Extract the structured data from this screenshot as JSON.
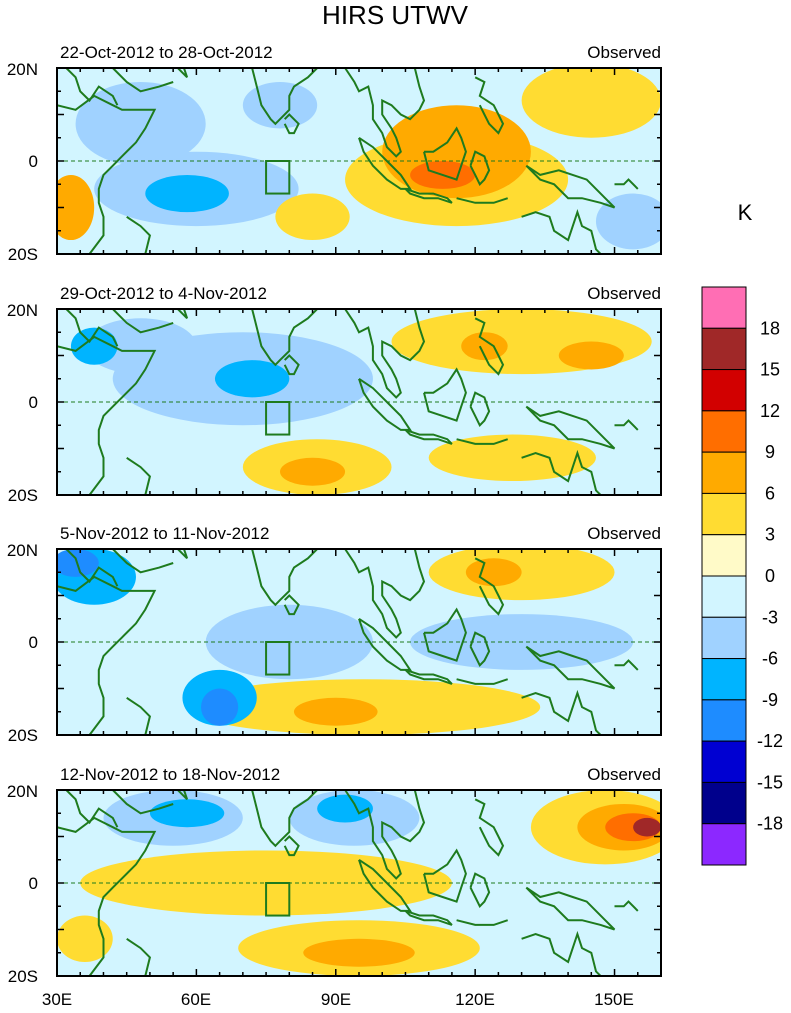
{
  "figure": {
    "title": "HIRS UTWV",
    "units": "K",
    "palette": {
      "coast": "#1e7b1e",
      "frame": "#000000",
      "box": "#1e7b1e"
    }
  },
  "axes": {
    "lat_labels": [
      "20N",
      "0",
      "20S"
    ],
    "lon_labels": [
      "30E",
      "60E",
      "90E",
      "120E",
      "150E"
    ],
    "lon_values": [
      30,
      60,
      90,
      120,
      150
    ],
    "lon_range": [
      30,
      160
    ],
    "lat_range": [
      -20,
      20
    ]
  },
  "colorbar": {
    "levels": [
      "18",
      "15",
      "12",
      "9",
      "6",
      "3",
      "0",
      "-3",
      "-6",
      "-9",
      "-12",
      "-15",
      "-18"
    ],
    "colors_top_to_bottom": [
      "#ff6eb4",
      "#a02828",
      "#d20000",
      "#ff6e00",
      "#ffaa00",
      "#ffdc32",
      "#fffac8",
      "#d2f5ff",
      "#a0d2ff",
      "#00b4ff",
      "#1e8cff",
      "#0000d2",
      "#00008c",
      "#8c28ff"
    ]
  },
  "panels": [
    {
      "period": "22-Oct-2012 to 28-Oct-2012",
      "label": "Observed",
      "blobs": [
        {
          "lon": 116,
          "lat": -4,
          "rx": 24,
          "ry": 10,
          "color": "#ffdc32"
        },
        {
          "lon": 116,
          "lat": 2,
          "rx": 16,
          "ry": 10,
          "color": "#ffaa00"
        },
        {
          "lon": 113,
          "lat": -3,
          "rx": 7,
          "ry": 3,
          "color": "#ff6e00"
        },
        {
          "lon": 48,
          "lat": 8,
          "rx": 14,
          "ry": 9,
          "color": "#a0d2ff"
        },
        {
          "lon": 60,
          "lat": -6,
          "rx": 22,
          "ry": 8,
          "color": "#a0d2ff"
        },
        {
          "lon": 58,
          "lat": -7,
          "rx": 9,
          "ry": 4,
          "color": "#00b4ff"
        },
        {
          "lon": 78,
          "lat": 12,
          "rx": 8,
          "ry": 5,
          "color": "#a0d2ff"
        },
        {
          "lon": 33,
          "lat": -10,
          "rx": 5,
          "ry": 7,
          "color": "#ffaa00"
        },
        {
          "lon": 154,
          "lat": -13,
          "rx": 8,
          "ry": 6,
          "color": "#a0d2ff"
        },
        {
          "lon": 145,
          "lat": 13,
          "rx": 15,
          "ry": 8,
          "color": "#ffdc32"
        },
        {
          "lon": 85,
          "lat": -12,
          "rx": 8,
          "ry": 5,
          "color": "#ffdc32"
        }
      ]
    },
    {
      "period": "29-Oct-2012 to 4-Nov-2012",
      "label": "Observed",
      "blobs": [
        {
          "lon": 130,
          "lat": 13,
          "rx": 28,
          "ry": 7,
          "color": "#ffdc32"
        },
        {
          "lon": 122,
          "lat": 12,
          "rx": 5,
          "ry": 3,
          "color": "#ffaa00"
        },
        {
          "lon": 145,
          "lat": 10,
          "rx": 7,
          "ry": 3,
          "color": "#ffaa00"
        },
        {
          "lon": 86,
          "lat": -14,
          "rx": 16,
          "ry": 6,
          "color": "#ffdc32"
        },
        {
          "lon": 85,
          "lat": -15,
          "rx": 7,
          "ry": 3,
          "color": "#ffaa00"
        },
        {
          "lon": 128,
          "lat": -12,
          "rx": 18,
          "ry": 5,
          "color": "#ffdc32"
        },
        {
          "lon": 70,
          "lat": 5,
          "rx": 28,
          "ry": 10,
          "color": "#a0d2ff"
        },
        {
          "lon": 72,
          "lat": 5,
          "rx": 8,
          "ry": 4,
          "color": "#00b4ff"
        },
        {
          "lon": 48,
          "lat": 12,
          "rx": 12,
          "ry": 6,
          "color": "#a0d2ff"
        },
        {
          "lon": 38,
          "lat": 12,
          "rx": 5,
          "ry": 4,
          "color": "#00b4ff"
        }
      ]
    },
    {
      "period": "5-Nov-2012 to 11-Nov-2012",
      "label": "Observed",
      "blobs": [
        {
          "lon": 130,
          "lat": 15,
          "rx": 20,
          "ry": 6,
          "color": "#ffdc32"
        },
        {
          "lon": 124,
          "lat": 15,
          "rx": 6,
          "ry": 3,
          "color": "#ffaa00"
        },
        {
          "lon": 96,
          "lat": -14,
          "rx": 38,
          "ry": 6,
          "color": "#ffdc32"
        },
        {
          "lon": 90,
          "lat": -15,
          "rx": 9,
          "ry": 3,
          "color": "#ffaa00"
        },
        {
          "lon": 38,
          "lat": 14,
          "rx": 9,
          "ry": 6,
          "color": "#00b4ff"
        },
        {
          "lon": 34,
          "lat": 17,
          "rx": 5,
          "ry": 3,
          "color": "#1e8cff"
        },
        {
          "lon": 65,
          "lat": -12,
          "rx": 8,
          "ry": 6,
          "color": "#00b4ff"
        },
        {
          "lon": 65,
          "lat": -14,
          "rx": 4,
          "ry": 4,
          "color": "#1e8cff"
        },
        {
          "lon": 80,
          "lat": 0,
          "rx": 18,
          "ry": 8,
          "color": "#a0d2ff"
        },
        {
          "lon": 130,
          "lat": 0,
          "rx": 24,
          "ry": 6,
          "color": "#a0d2ff"
        }
      ]
    },
    {
      "period": "12-Nov-2012 to 18-Nov-2012",
      "label": "Observed",
      "blobs": [
        {
          "lon": 148,
          "lat": 12,
          "rx": 16,
          "ry": 8,
          "color": "#ffdc32"
        },
        {
          "lon": 152,
          "lat": 12,
          "rx": 10,
          "ry": 5,
          "color": "#ffaa00"
        },
        {
          "lon": 154,
          "lat": 12,
          "rx": 6,
          "ry": 3,
          "color": "#ff6e00"
        },
        {
          "lon": 157,
          "lat": 12,
          "rx": 3,
          "ry": 2,
          "color": "#a02828"
        },
        {
          "lon": 95,
          "lat": -14,
          "rx": 26,
          "ry": 6,
          "color": "#ffdc32"
        },
        {
          "lon": 95,
          "lat": -15,
          "rx": 12,
          "ry": 3,
          "color": "#ffaa00"
        },
        {
          "lon": 55,
          "lat": 14,
          "rx": 15,
          "ry": 6,
          "color": "#a0d2ff"
        },
        {
          "lon": 58,
          "lat": 15,
          "rx": 8,
          "ry": 3,
          "color": "#00b4ff"
        },
        {
          "lon": 94,
          "lat": 14,
          "rx": 14,
          "ry": 6,
          "color": "#a0d2ff"
        },
        {
          "lon": 92,
          "lat": 16,
          "rx": 6,
          "ry": 3,
          "color": "#00b4ff"
        },
        {
          "lon": 75,
          "lat": 0,
          "rx": 40,
          "ry": 7,
          "color": "#ffdc32"
        },
        {
          "lon": 36,
          "lat": -12,
          "rx": 6,
          "ry": 5,
          "color": "#ffdc32"
        }
      ]
    }
  ]
}
